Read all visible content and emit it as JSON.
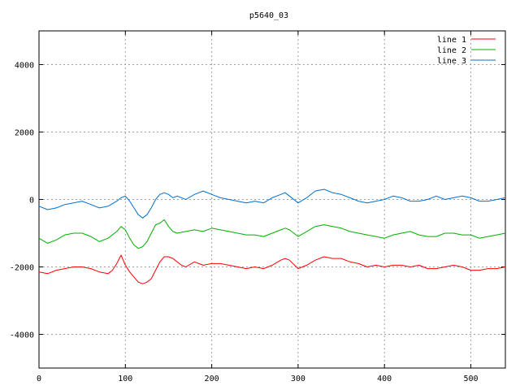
{
  "chart_data": {
    "type": "line",
    "title": "p5640_03",
    "xlabel": "",
    "ylabel": "",
    "xlim": [
      0,
      540
    ],
    "ylim": [
      -5000,
      5000
    ],
    "xticks": [
      0,
      100,
      200,
      300,
      400,
      500
    ],
    "yticks": [
      -4000,
      -2000,
      0,
      2000,
      4000
    ],
    "grid": true,
    "legend_position": "top-right",
    "series": [
      {
        "name": "line 1",
        "color": "#ff0000",
        "x": [
          0,
          10,
          20,
          30,
          40,
          50,
          60,
          70,
          80,
          85,
          90,
          95,
          100,
          105,
          110,
          115,
          120,
          125,
          130,
          135,
          140,
          145,
          150,
          155,
          160,
          165,
          170,
          180,
          190,
          200,
          210,
          220,
          230,
          240,
          250,
          260,
          270,
          280,
          285,
          290,
          300,
          310,
          320,
          330,
          340,
          350,
          360,
          370,
          380,
          390,
          400,
          410,
          420,
          430,
          440,
          450,
          460,
          470,
          480,
          490,
          500,
          510,
          520,
          530,
          540
        ],
        "y": [
          -2150,
          -2200,
          -2100,
          -2050,
          -2000,
          -2000,
          -2050,
          -2150,
          -2200,
          -2100,
          -1900,
          -1650,
          -1950,
          -2150,
          -2300,
          -2450,
          -2500,
          -2450,
          -2350,
          -2100,
          -1850,
          -1700,
          -1700,
          -1750,
          -1850,
          -1950,
          -2000,
          -1850,
          -1950,
          -1900,
          -1900,
          -1950,
          -2000,
          -2050,
          -2000,
          -2050,
          -1950,
          -1800,
          -1750,
          -1800,
          -2050,
          -1950,
          -1800,
          -1700,
          -1750,
          -1750,
          -1850,
          -1900,
          -2000,
          -1950,
          -2000,
          -1950,
          -1950,
          -2000,
          -1950,
          -2050,
          -2050,
          -2000,
          -1950,
          -2000,
          -2100,
          -2100,
          -2050,
          -2050,
          -2000
        ]
      },
      {
        "name": "line 2",
        "color": "#00b000",
        "x": [
          0,
          10,
          20,
          30,
          40,
          50,
          60,
          70,
          80,
          90,
          95,
          100,
          105,
          110,
          115,
          120,
          125,
          130,
          135,
          140,
          145,
          150,
          155,
          160,
          170,
          180,
          190,
          200,
          210,
          220,
          230,
          240,
          250,
          260,
          270,
          280,
          285,
          290,
          300,
          310,
          320,
          330,
          340,
          350,
          360,
          370,
          380,
          390,
          400,
          410,
          420,
          430,
          440,
          450,
          460,
          470,
          480,
          490,
          500,
          510,
          520,
          530,
          540
        ],
        "y": [
          -1150,
          -1300,
          -1200,
          -1050,
          -1000,
          -1000,
          -1100,
          -1250,
          -1150,
          -950,
          -800,
          -900,
          -1150,
          -1350,
          -1450,
          -1400,
          -1250,
          -1000,
          -750,
          -700,
          -600,
          -800,
          -950,
          -1000,
          -950,
          -900,
          -950,
          -850,
          -900,
          -950,
          -1000,
          -1050,
          -1050,
          -1100,
          -1000,
          -900,
          -850,
          -900,
          -1100,
          -950,
          -800,
          -750,
          -800,
          -850,
          -950,
          -1000,
          -1050,
          -1100,
          -1150,
          -1050,
          -1000,
          -950,
          -1050,
          -1100,
          -1100,
          -1000,
          -1000,
          -1050,
          -1050,
          -1150,
          -1100,
          -1050,
          -1000
        ]
      },
      {
        "name": "line 3",
        "color": "#0070d0",
        "x": [
          0,
          10,
          20,
          30,
          40,
          50,
          60,
          70,
          80,
          90,
          95,
          100,
          105,
          110,
          115,
          120,
          125,
          130,
          135,
          140,
          145,
          150,
          155,
          160,
          170,
          180,
          190,
          200,
          210,
          220,
          230,
          240,
          250,
          260,
          270,
          280,
          285,
          290,
          300,
          310,
          320,
          330,
          340,
          350,
          360,
          370,
          380,
          390,
          400,
          410,
          420,
          430,
          440,
          450,
          460,
          470,
          480,
          490,
          500,
          510,
          520,
          530,
          540
        ],
        "y": [
          -200,
          -300,
          -250,
          -150,
          -100,
          -50,
          -150,
          -250,
          -200,
          -50,
          50,
          100,
          -50,
          -250,
          -450,
          -550,
          -450,
          -250,
          0,
          150,
          200,
          150,
          50,
          100,
          0,
          150,
          250,
          150,
          50,
          0,
          -50,
          -100,
          -50,
          -100,
          50,
          150,
          200,
          100,
          -100,
          50,
          250,
          300,
          200,
          150,
          50,
          -50,
          -100,
          -50,
          0,
          100,
          50,
          -50,
          -50,
          0,
          100,
          0,
          50,
          100,
          50,
          -50,
          -50,
          0,
          50
        ]
      }
    ]
  }
}
